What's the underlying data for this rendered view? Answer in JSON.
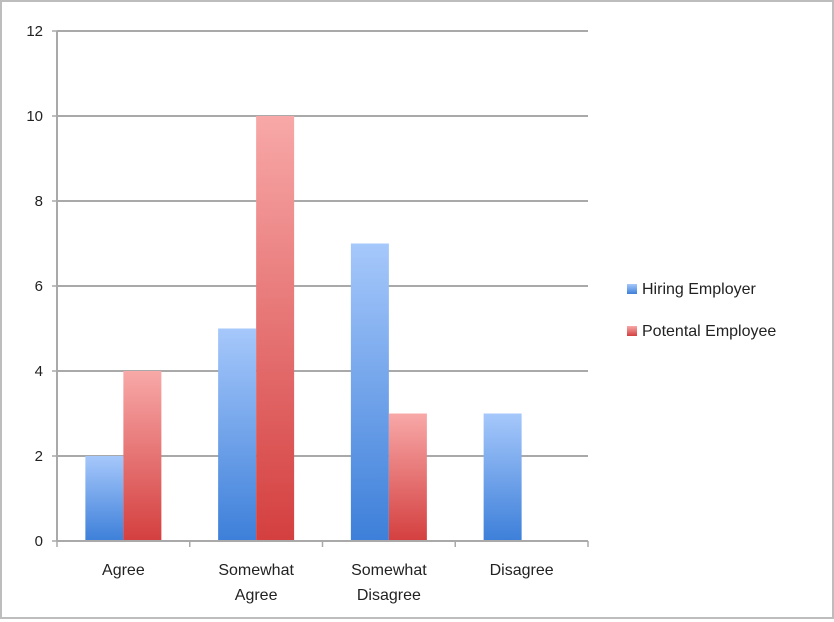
{
  "chart_data": {
    "type": "bar",
    "categories": [
      [
        "Agree"
      ],
      [
        "Somewhat",
        "Agree"
      ],
      [
        "Somewhat",
        "Disagree"
      ],
      [
        "Disagree"
      ]
    ],
    "series": [
      {
        "name": "Hiring Employer",
        "values": [
          2,
          5,
          7,
          3
        ],
        "color_top": "#a6c8fb",
        "color_bottom": "#3d7fd9"
      },
      {
        "name": "Potental Employee",
        "values": [
          4,
          10,
          3,
          0
        ],
        "color_top": "#f8a8a8",
        "color_bottom": "#d43f3f"
      }
    ],
    "ylim": [
      0,
      12
    ],
    "yticks": [
      0,
      2,
      4,
      6,
      8,
      10,
      12
    ],
    "grid": true,
    "legend_position": "right"
  }
}
